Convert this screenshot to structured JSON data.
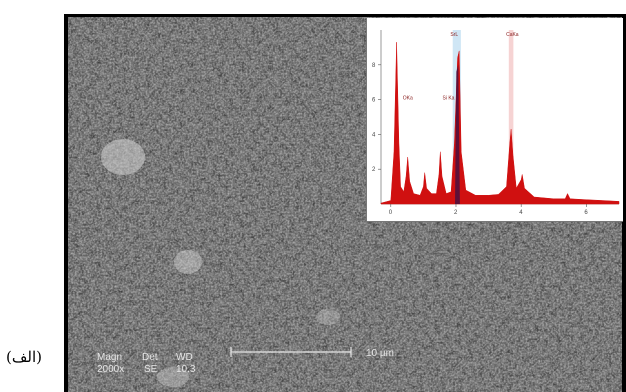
{
  "figure_label": "(الف)",
  "sem": {
    "magn_label": "Magn",
    "magn_value": "2000x",
    "det_label": "Det",
    "det_value": "SE",
    "wd_label": "WD",
    "wd_value": "10.3",
    "scalebar_text": "10 µm"
  },
  "colors": {
    "spectrum_red": "#d01010",
    "peak_dark": "#4a1040",
    "band_blue": "#cfe6f5",
    "band_pink": "#f6d3d3"
  },
  "chart_data": {
    "type": "line",
    "title": "",
    "xlabel": "",
    "ylabel": "",
    "xlim": [
      -0.3,
      7.0
    ],
    "ylim": [
      0,
      10
    ],
    "x_ticks": [
      "0",
      "2",
      "4",
      "6"
    ],
    "y_ticks": [
      "2",
      "4",
      "6",
      "8"
    ],
    "peak_labels": [
      {
        "text": "OKa",
        "x": 0.52
      },
      {
        "text": "Si Ka",
        "x": 1.74
      },
      {
        "text": "SrL",
        "x": 1.98
      },
      {
        "text": "CaKa",
        "x": 3.69
      }
    ],
    "series": [
      {
        "values": [
          [
            -0.3,
            0.05
          ],
          [
            0.0,
            0.2
          ],
          [
            0.1,
            3.0
          ],
          [
            0.18,
            9.3
          ],
          [
            0.25,
            3.5
          ],
          [
            0.3,
            1.0
          ],
          [
            0.4,
            0.7
          ],
          [
            0.47,
            1.6
          ],
          [
            0.52,
            2.7
          ],
          [
            0.58,
            1.3
          ],
          [
            0.7,
            0.6
          ],
          [
            0.9,
            0.5
          ],
          [
            1.0,
            1.0
          ],
          [
            1.04,
            1.8
          ],
          [
            1.1,
            0.9
          ],
          [
            1.25,
            0.6
          ],
          [
            1.4,
            0.6
          ],
          [
            1.48,
            1.7
          ],
          [
            1.52,
            3.0
          ],
          [
            1.57,
            1.6
          ],
          [
            1.7,
            0.6
          ],
          [
            1.85,
            0.7
          ],
          [
            1.95,
            3.5
          ],
          [
            2.05,
            8.4
          ],
          [
            2.1,
            8.8
          ],
          [
            2.16,
            3.0
          ],
          [
            2.3,
            0.8
          ],
          [
            2.6,
            0.5
          ],
          [
            3.0,
            0.5
          ],
          [
            3.3,
            0.55
          ],
          [
            3.55,
            1.0
          ],
          [
            3.65,
            3.5
          ],
          [
            3.69,
            4.3
          ],
          [
            3.75,
            2.8
          ],
          [
            3.85,
            0.9
          ],
          [
            4.0,
            1.4
          ],
          [
            4.03,
            1.7
          ],
          [
            4.1,
            0.9
          ],
          [
            4.4,
            0.4
          ],
          [
            5.0,
            0.3
          ],
          [
            5.35,
            0.3
          ],
          [
            5.42,
            0.6
          ],
          [
            5.5,
            0.3
          ],
          [
            6.0,
            0.25
          ],
          [
            6.5,
            0.2
          ],
          [
            7.0,
            0.15
          ]
        ]
      }
    ]
  }
}
